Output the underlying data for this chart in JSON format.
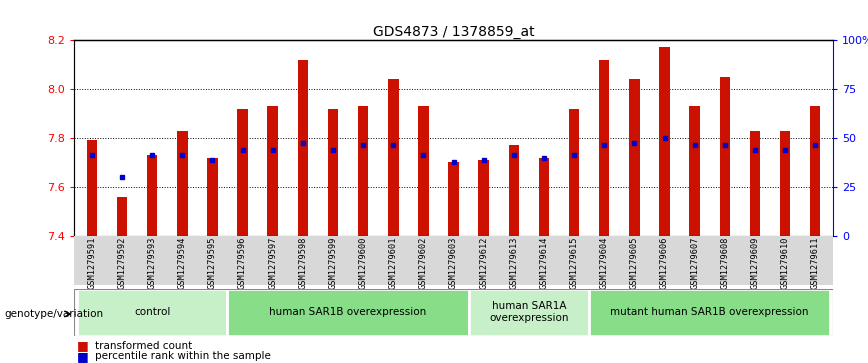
{
  "title": "GDS4873 / 1378859_at",
  "samples": [
    "GSM1279591",
    "GSM1279592",
    "GSM1279593",
    "GSM1279594",
    "GSM1279595",
    "GSM1279596",
    "GSM1279597",
    "GSM1279598",
    "GSM1279599",
    "GSM1279600",
    "GSM1279601",
    "GSM1279602",
    "GSM1279603",
    "GSM1279612",
    "GSM1279613",
    "GSM1279614",
    "GSM1279615",
    "GSM1279604",
    "GSM1279605",
    "GSM1279606",
    "GSM1279607",
    "GSM1279608",
    "GSM1279609",
    "GSM1279610",
    "GSM1279611"
  ],
  "red_values": [
    7.79,
    7.56,
    7.73,
    7.83,
    7.72,
    7.92,
    7.93,
    8.12,
    7.92,
    7.93,
    8.04,
    7.93,
    7.7,
    7.71,
    7.77,
    7.72,
    7.92,
    8.12,
    8.04,
    8.17,
    7.93,
    8.05,
    7.83,
    7.83,
    7.93
  ],
  "blue_values": [
    7.73,
    7.64,
    7.73,
    7.73,
    7.71,
    7.75,
    7.75,
    7.78,
    7.75,
    7.77,
    7.77,
    7.73,
    7.7,
    7.71,
    7.73,
    7.72,
    7.73,
    7.77,
    7.78,
    7.8,
    7.77,
    7.77,
    7.75,
    7.75,
    7.77
  ],
  "groups": [
    {
      "label": "control",
      "start": 0,
      "end": 5,
      "color": "#c8f0c8"
    },
    {
      "label": "human SAR1B overexpression",
      "start": 5,
      "end": 13,
      "color": "#88dd88"
    },
    {
      "label": "human SAR1A\noverexpression",
      "start": 13,
      "end": 17,
      "color": "#c8f0c8"
    },
    {
      "label": "mutant human SAR1B overexpression",
      "start": 17,
      "end": 25,
      "color": "#88dd88"
    }
  ],
  "ymin": 7.4,
  "ymax": 8.2,
  "yticks": [
    7.4,
    7.6,
    7.8,
    8.0,
    8.2
  ],
  "right_yticks": [
    0,
    25,
    50,
    75,
    100
  ],
  "right_ytick_labels": [
    "0",
    "25",
    "50",
    "75",
    "100%"
  ],
  "bar_color": "#cc1100",
  "blue_color": "#0000cc",
  "bar_width": 0.35,
  "legend_label_red": "transformed count",
  "legend_label_blue": "percentile rank within the sample",
  "genotype_label": "genotype/variation"
}
